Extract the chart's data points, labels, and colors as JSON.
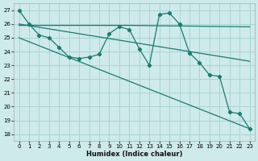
{
  "xlabel": "Humidex (Indice chaleur)",
  "bg_color": "#ceeaea",
  "grid_color": "#aad4d4",
  "line_color": "#1a7a6e",
  "ylim": [
    17.5,
    27.5
  ],
  "xlim": [
    -0.5,
    23.5
  ],
  "yticks": [
    18,
    19,
    20,
    21,
    22,
    23,
    24,
    25,
    26,
    27
  ],
  "xticks": [
    0,
    1,
    2,
    3,
    4,
    5,
    6,
    7,
    8,
    9,
    10,
    11,
    12,
    13,
    14,
    15,
    16,
    17,
    18,
    19,
    20,
    21,
    22,
    23
  ],
  "series_main": {
    "x": [
      0,
      1,
      2,
      3,
      4,
      5,
      6,
      7,
      8,
      9,
      10,
      11,
      12,
      13,
      14,
      15,
      16,
      17,
      18,
      19,
      20,
      21,
      22,
      23
    ],
    "y": [
      27.0,
      26.0,
      25.2,
      25.0,
      24.3,
      23.6,
      23.5,
      23.6,
      23.8,
      25.3,
      25.8,
      25.6,
      24.2,
      23.0,
      26.7,
      26.8,
      26.0,
      23.9,
      23.2,
      22.3,
      22.2,
      19.6,
      19.5,
      18.4
    ]
  },
  "series_flat": {
    "x": [
      0,
      11,
      23
    ],
    "y": [
      25.9,
      25.9,
      25.8
    ]
  },
  "series_diag1": {
    "x": [
      0,
      23
    ],
    "y": [
      26.0,
      23.3
    ]
  },
  "series_diag2": {
    "x": [
      0,
      23
    ],
    "y": [
      25.0,
      18.4
    ]
  }
}
